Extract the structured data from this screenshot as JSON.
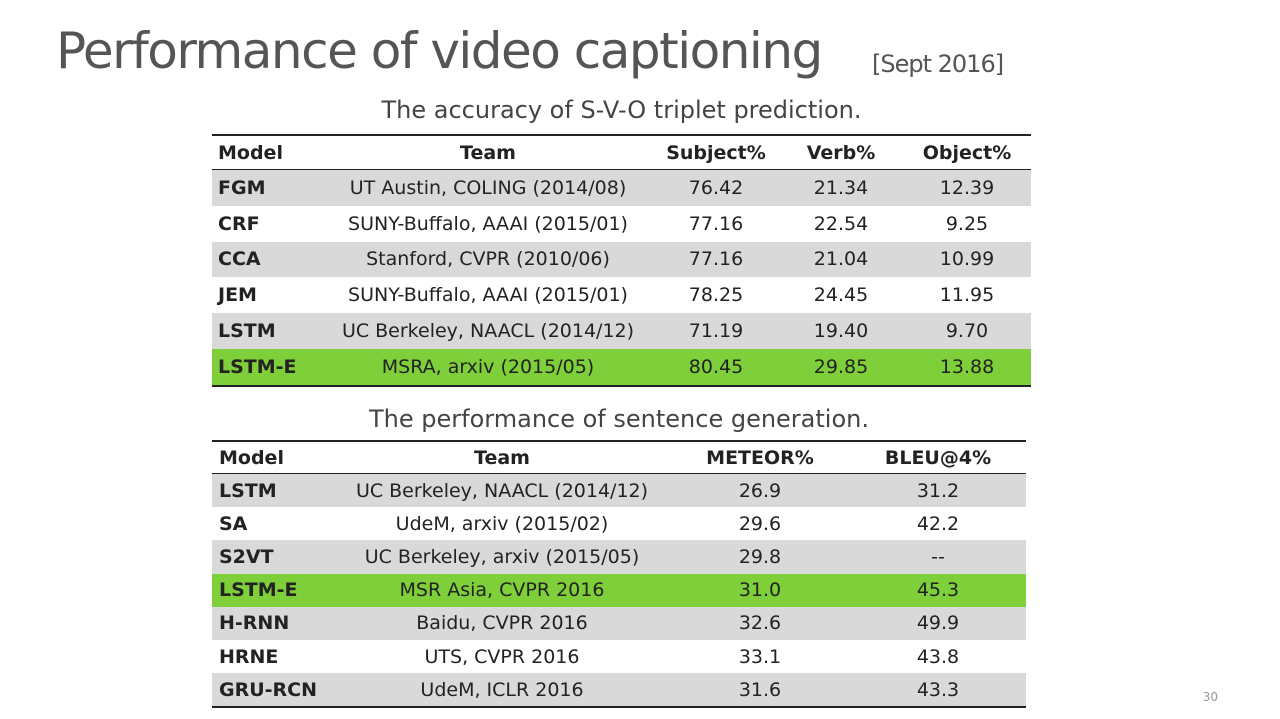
{
  "header": {
    "title": "Performance of video captioning",
    "date": "[Sept 2016]"
  },
  "table1": {
    "caption": "The accuracy of S-V-O triplet prediction.",
    "columns": [
      "Model",
      "Team",
      "Subject%",
      "Verb%",
      "Object%"
    ],
    "rows": [
      [
        "FGM",
        "UT Austin, COLING (2014/08)",
        "76.42",
        "21.34",
        "12.39"
      ],
      [
        "CRF",
        "SUNY-Buffalo, AAAI (2015/01)",
        "77.16",
        "22.54",
        "9.25"
      ],
      [
        "CCA",
        "Stanford, CVPR (2010/06)",
        "77.16",
        "21.04",
        "10.99"
      ],
      [
        "JEM",
        "SUNY-Buffalo, AAAI (2015/01)",
        "78.25",
        "24.45",
        "11.95"
      ],
      [
        "LSTM",
        "UC Berkeley, NAACL (2014/12)",
        "71.19",
        "19.40",
        "9.70"
      ],
      [
        "LSTM-E",
        "MSRA, arxiv (2015/05)",
        "80.45",
        "29.85",
        "13.88"
      ]
    ]
  },
  "table2": {
    "caption": "The performance of sentence generation.",
    "columns": [
      "Model",
      "Team",
      "METEOR%",
      "BLEU@4%"
    ],
    "rows": [
      [
        "LSTM",
        "UC Berkeley, NAACL (2014/12)",
        "26.9",
        "31.2"
      ],
      [
        "SA",
        "UdeM, arxiv (2015/02)",
        "29.6",
        "42.2"
      ],
      [
        "S2VT",
        "UC Berkeley, arxiv (2015/05)",
        "29.8",
        "--"
      ],
      [
        "LSTM-E",
        "MSR Asia, CVPR 2016",
        "31.0",
        "45.3"
      ],
      [
        "H-RNN",
        "Baidu, CVPR 2016",
        "32.6",
        "49.9"
      ],
      [
        "HRNE",
        "UTS, CVPR 2016",
        "33.1",
        "43.8"
      ],
      [
        "GRU-RCN",
        "UdeM, ICLR 2016",
        "31.6",
        "43.3"
      ]
    ]
  },
  "footer": {
    "page": "30"
  }
}
